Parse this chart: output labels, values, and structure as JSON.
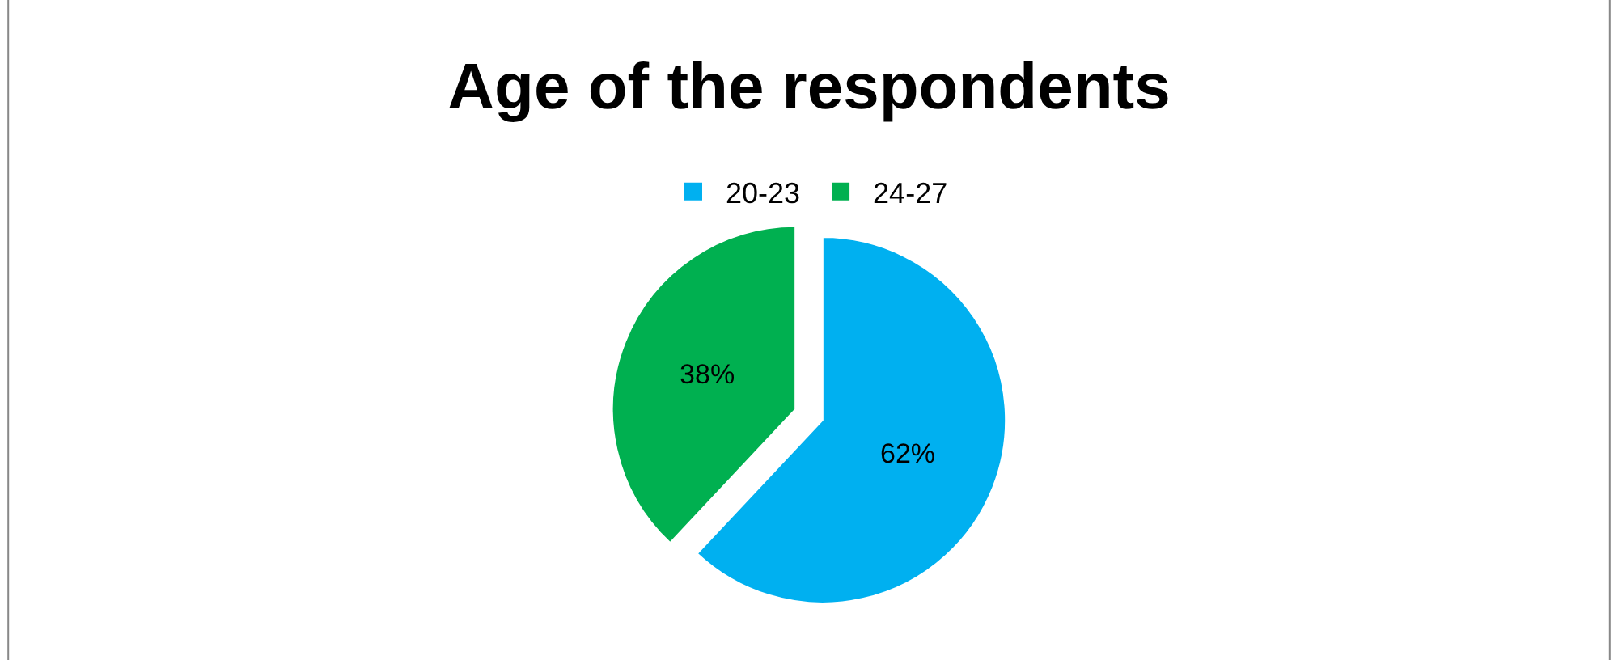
{
  "chart_data": {
    "type": "pie",
    "title": "Age of the respondents",
    "categories": [
      "20-23",
      "24-27"
    ],
    "values": [
      62,
      38
    ],
    "colors": [
      "#00b0f0",
      "#00b050"
    ],
    "value_labels": [
      "62%",
      "38%"
    ],
    "legend": "top"
  }
}
